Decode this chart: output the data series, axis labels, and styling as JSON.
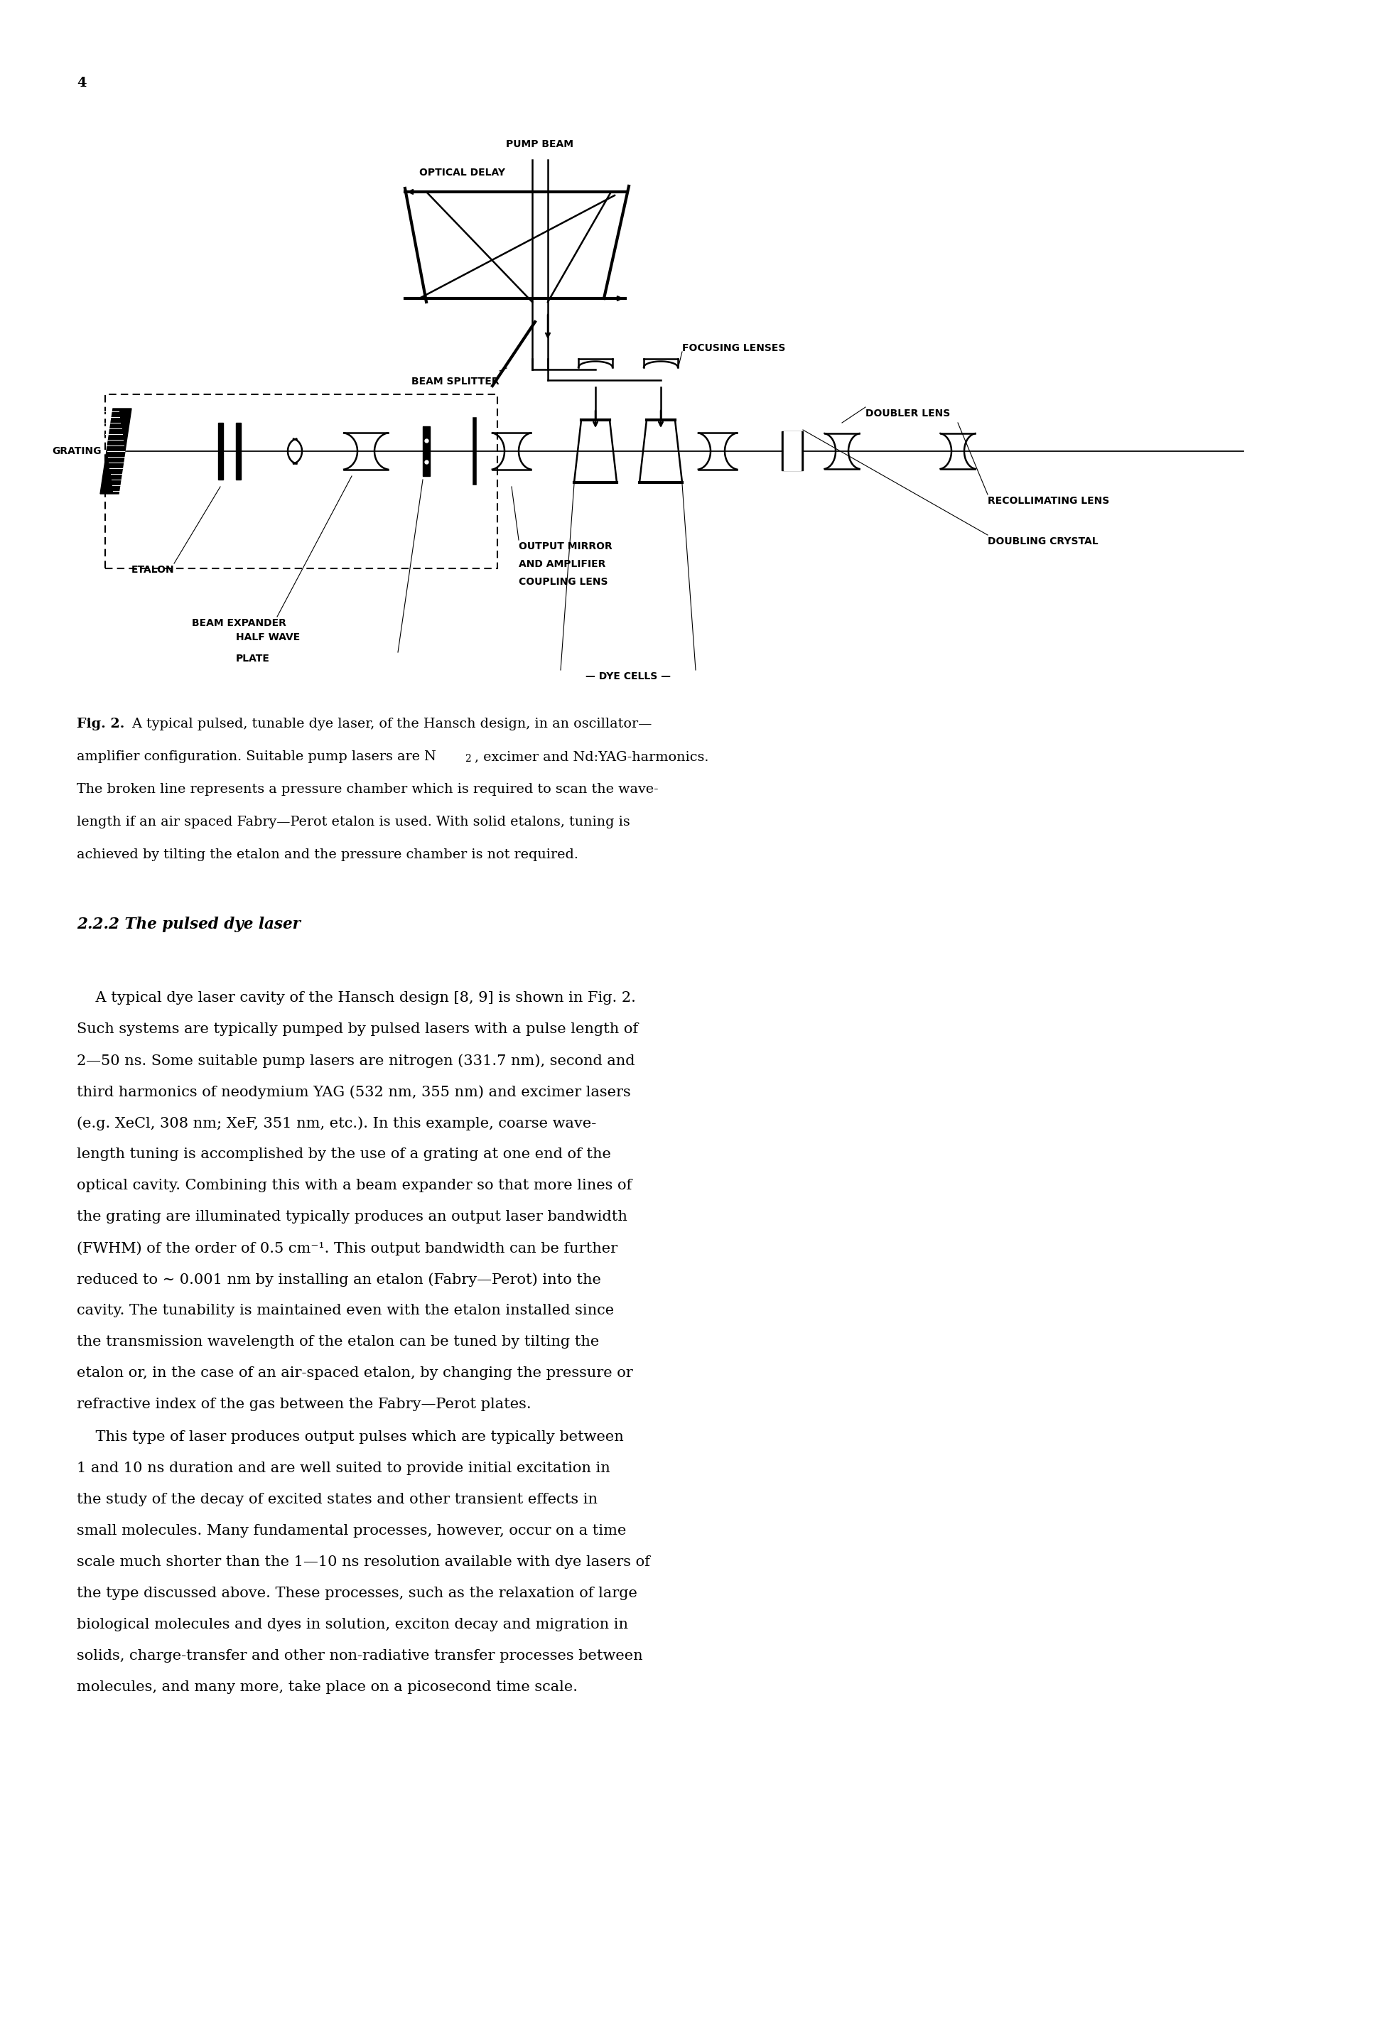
{
  "page_number": "4",
  "background_color": "#ffffff",
  "caption_bold": "Fig. 2.",
  "caption_line1_normal": " A typical pulsed, tunable dye laser, of the Hansch design, in an oscillator—",
  "caption_line2a": "amplifier configuration. Suitable pump lasers are N",
  "caption_line2_sub": "2",
  "caption_line2b": ", excimer and Nd:YAG-harmonics.",
  "caption_line3": "The broken line represents a pressure chamber which is required to scan the wave-",
  "caption_line4": "length if an air spaced Fabry—Perot etalon is used. With solid etalons, tuning is",
  "caption_line5": "achieved by tilting the etalon and the pressure chamber is not required.",
  "section_title": "2.2.2 The pulsed dye laser",
  "para1_lines": [
    "    A typical dye laser cavity of the Hansch design [8, 9] is shown in Fig. 2.",
    "Such systems are typically pumped by pulsed lasers with a pulse length of",
    "2—50 ns. Some suitable pump lasers are nitrogen (331.7 nm), second and",
    "third harmonics of neodymium YAG (532 nm, 355 nm) and excimer lasers",
    "(e.g. XeCl, 308 nm; XeF, 351 nm, etc.). In this example, coarse wave-",
    "length tuning is accomplished by the use of a grating at one end of the",
    "optical cavity. Combining this with a beam expander so that more lines of",
    "the grating are illuminated typically produces an output laser bandwidth",
    "(FWHM) of the order of 0.5 cm⁻¹. This output bandwidth can be further",
    "reduced to ∼ 0.001 nm by installing an etalon (Fabry—Perot) into the",
    "cavity. The tunability is maintained even with the etalon installed since",
    "the transmission wavelength of the etalon can be tuned by tilting the",
    "etalon or, in the case of an air-spaced etalon, by changing the pressure or",
    "refractive index of the gas between the Fabry—Perot plates."
  ],
  "para2_lines": [
    "    This type of laser produces output pulses which are typically between",
    "1 and 10 ns duration and are well suited to provide initial excitation in",
    "the study of the decay of excited states and other transient effects in",
    "small molecules. Many fundamental processes, however, occur on a time",
    "scale much shorter than the 1—10 ns resolution available with dye lasers of",
    "the type discussed above. These processes, such as the relaxation of large",
    "biological molecules and dyes in solution, exciton decay and migration in",
    "solids, charge-transfer and other non-radiative transfer processes between",
    "molecules, and many more, take place on a picosecond time scale."
  ],
  "label_pump_beam": "PUMP BEAM",
  "label_optical_delay": "OPTICAL DELAY",
  "label_beam_splitter": "BEAM SPLITTER",
  "label_focusing_lenses": "FOCUSING LENSES",
  "label_doubler_lens": "DOUBLER LENS",
  "label_grating": "GRATING",
  "label_etalon": "ETALON",
  "label_beam_expander": "BEAM EXPANDER",
  "label_half_wave": "HALF WAVE",
  "label_plate": "PLATE",
  "label_output_mirror": "OUTPUT MIRROR",
  "label_and_amplifier": "AND AMPLIFIER",
  "label_coupling_lens": "COUPLING LENS",
  "label_dye_cells": "— DYE CELLS —",
  "label_recollimating_lens": "RECOLLIMATING LENS",
  "label_doubling_crystal": "DOUBLING CRYSTAL"
}
